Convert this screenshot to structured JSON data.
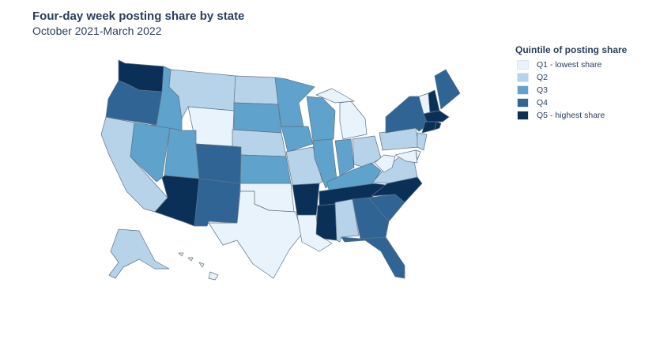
{
  "title": "Four-day week posting share by state",
  "subtitle": "October 2021-March 2022",
  "legend": {
    "title": "Quintile of posting share",
    "items": [
      {
        "label": "Q1 - lowest share",
        "color": "#e8f3fb"
      },
      {
        "label": "Q2",
        "color": "#b7d3e9"
      },
      {
        "label": "Q3",
        "color": "#5fa2cc"
      },
      {
        "label": "Q4",
        "color": "#2f6494"
      },
      {
        "label": "Q5 - highest share",
        "color": "#0b3057"
      }
    ]
  },
  "states": {
    "WA": "Q5",
    "OR": "Q4",
    "CA": "Q2",
    "NV": "Q3",
    "ID": "Q3",
    "MT": "Q2",
    "WY": "Q1",
    "UT": "Q3",
    "AZ": "Q5",
    "CO": "Q4",
    "NM": "Q4",
    "ND": "Q2",
    "SD": "Q3",
    "NE": "Q2",
    "KS": "Q3",
    "OK": "Q1",
    "TX": "Q1",
    "MN": "Q3",
    "IA": "Q3",
    "MO": "Q2",
    "AR": "Q5",
    "LA": "Q1",
    "WI": "Q3",
    "IL": "Q3",
    "MI": "Q1",
    "IN": "Q3",
    "OH": "Q2",
    "KY": "Q3",
    "TN": "Q5",
    "MS": "Q5",
    "AL": "Q2",
    "GA": "Q4",
    "FL": "Q4",
    "SC": "Q4",
    "NC": "Q5",
    "VA": "Q2",
    "WV": "Q1",
    "PA": "Q2",
    "NY": "Q4",
    "VT": "Q1",
    "NH": "Q5",
    "ME": "Q4",
    "MA": "Q5",
    "CT": "Q5",
    "RI": "Q5",
    "NJ": "Q2",
    "DE": "Q1",
    "MD": "Q1",
    "AK": "Q2",
    "HI": "Q1"
  }
}
